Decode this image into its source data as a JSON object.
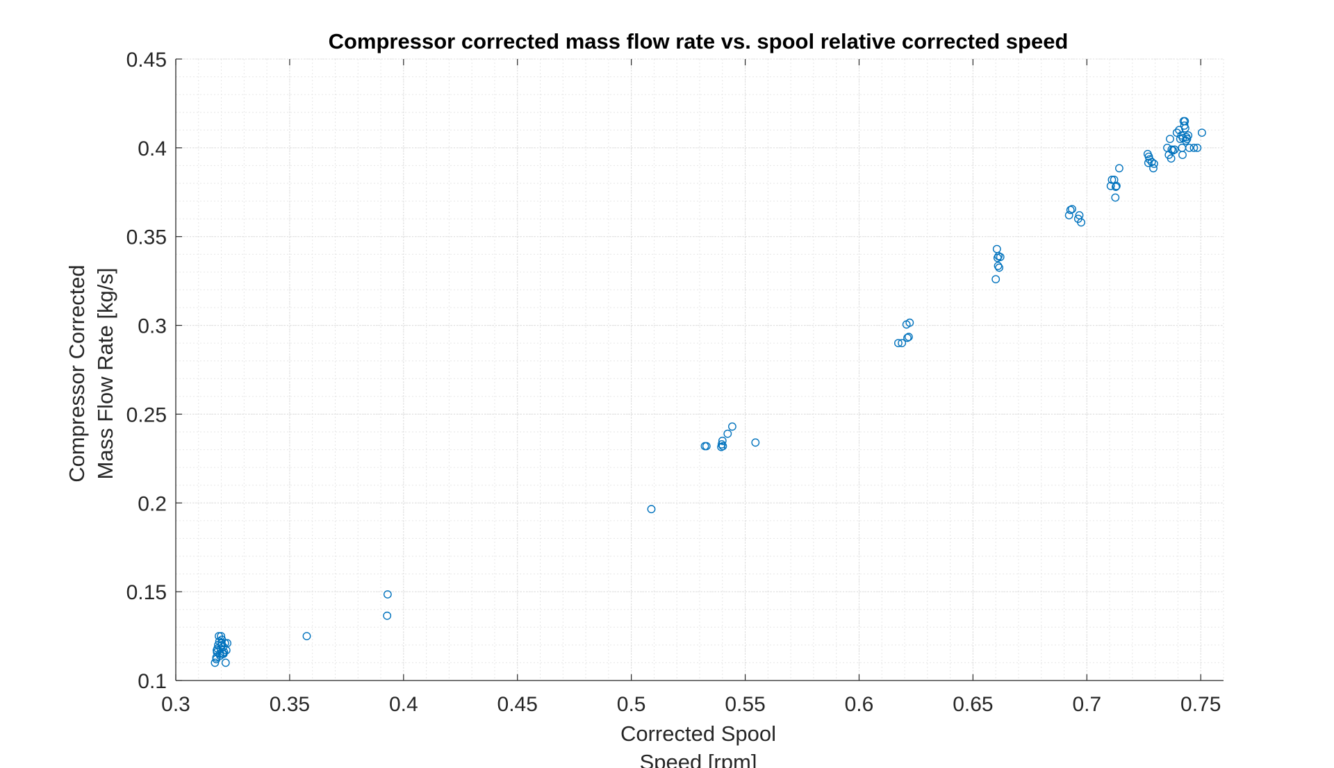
{
  "chart_data": {
    "type": "scatter",
    "title": "Compressor corrected mass flow rate vs. spool relative corrected speed",
    "xlabel": [
      "Corrected Spool",
      "Speed [rpm]"
    ],
    "ylabel": [
      "Compressor Corrected",
      "Mass Flow Rate [kg/s]"
    ],
    "xlim": [
      0.3,
      0.76
    ],
    "ylim": [
      0.1,
      0.45
    ],
    "xticks": [
      "0.3",
      "0.35",
      "0.4",
      "0.45",
      "0.5",
      "0.55",
      "0.6",
      "0.65",
      "0.7",
      "0.75"
    ],
    "yticks": [
      "0.1",
      "0.15",
      "0.2",
      "0.25",
      "0.3",
      "0.35",
      "0.4",
      "0.45"
    ],
    "grid": true,
    "minor_grid": true,
    "marker": "circle-open",
    "color": "#0072BD",
    "series": [
      {
        "x": [
          0.3172,
          0.3178,
          0.3181,
          0.3183,
          0.3186,
          0.3189,
          0.3191,
          0.3193,
          0.3195,
          0.3197,
          0.3199,
          0.3201,
          0.3203,
          0.3206,
          0.3209,
          0.3212,
          0.3216,
          0.3219,
          0.3222,
          0.3226,
          0.318,
          0.3195,
          0.321,
          0.3178,
          0.3203,
          0.3575,
          0.3928,
          0.393,
          0.5088,
          0.5323,
          0.533,
          0.5395,
          0.5397,
          0.54,
          0.5402,
          0.5423,
          0.5443,
          0.5545,
          0.6172,
          0.6188,
          0.6208,
          0.6212,
          0.6218,
          0.6222,
          0.66,
          0.6605,
          0.6608,
          0.661,
          0.6612,
          0.6615,
          0.662,
          0.6922,
          0.6928,
          0.6935,
          0.6962,
          0.6967,
          0.6975,
          0.7105,
          0.711,
          0.712,
          0.7125,
          0.7127,
          0.713,
          0.7142,
          0.7267,
          0.727,
          0.7272,
          0.7275,
          0.7285,
          0.7292,
          0.7295,
          0.7353,
          0.736,
          0.7365,
          0.737,
          0.7372,
          0.7378,
          0.7385,
          0.7395,
          0.7405,
          0.741,
          0.7415,
          0.7418,
          0.742,
          0.7422,
          0.7425,
          0.7428,
          0.743,
          0.7432,
          0.7435,
          0.7437,
          0.744,
          0.7445,
          0.745,
          0.747,
          0.7485,
          0.7505
        ],
        "y": [
          0.11,
          0.113,
          0.116,
          0.118,
          0.12,
          0.125,
          0.122,
          0.115,
          0.114,
          0.118,
          0.125,
          0.121,
          0.123,
          0.115,
          0.119,
          0.116,
          0.121,
          0.11,
          0.117,
          0.121,
          0.117,
          0.114,
          0.115,
          0.112,
          0.12,
          0.125,
          0.1365,
          0.1485,
          0.1965,
          0.232,
          0.232,
          0.2315,
          0.233,
          0.235,
          0.232,
          0.239,
          0.243,
          0.234,
          0.29,
          0.29,
          0.3005,
          0.293,
          0.2935,
          0.3015,
          0.326,
          0.343,
          0.338,
          0.3335,
          0.339,
          0.3325,
          0.3385,
          0.362,
          0.365,
          0.3655,
          0.36,
          0.362,
          0.358,
          0.3785,
          0.382,
          0.382,
          0.372,
          0.378,
          0.3785,
          0.3885,
          0.3965,
          0.3915,
          0.395,
          0.3935,
          0.392,
          0.3885,
          0.391,
          0.4,
          0.396,
          0.405,
          0.394,
          0.399,
          0.3985,
          0.399,
          0.4085,
          0.41,
          0.405,
          0.407,
          0.4,
          0.396,
          0.4055,
          0.415,
          0.4125,
          0.415,
          0.411,
          0.404,
          0.406,
          0.405,
          0.407,
          0.4,
          0.4,
          0.4,
          0.4085
        ]
      }
    ]
  }
}
